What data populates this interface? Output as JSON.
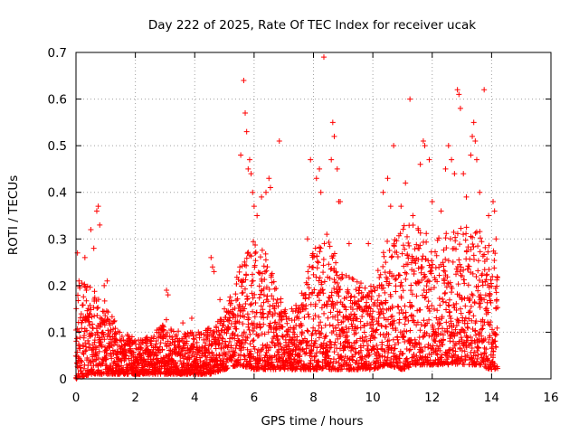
{
  "chart_data": {
    "type": "scatter",
    "title": "Day 222 of 2025, Rate Of TEC Index for receiver ucak",
    "xlabel": "GPS time / hours",
    "ylabel": "ROTI / TECUs",
    "xlim": [
      0,
      16
    ],
    "ylim": [
      0,
      0.7
    ],
    "x_ticks": [
      0,
      2,
      4,
      6,
      8,
      10,
      12,
      14,
      16
    ],
    "x_tick_labels": [
      "0",
      "2",
      "4",
      "6",
      "8",
      "10",
      "12",
      "14",
      "16"
    ],
    "y_ticks": [
      0,
      0.1,
      0.2,
      0.3,
      0.4,
      0.5,
      0.6,
      0.7
    ],
    "y_tick_labels": [
      "0",
      "0.1",
      "0.2",
      "0.3",
      "0.4",
      "0.5",
      "0.6",
      "0.7"
    ],
    "grid": true,
    "marker": "plus",
    "color": "#ff0000",
    "series": [
      {
        "name": "ROTI",
        "points": [
          [
            0.05,
            0.27
          ],
          [
            0.1,
            0.21
          ],
          [
            0.3,
            0.26
          ],
          [
            0.35,
            0.19
          ],
          [
            0.5,
            0.32
          ],
          [
            0.6,
            0.28
          ],
          [
            0.7,
            0.36
          ],
          [
            0.75,
            0.37
          ],
          [
            0.8,
            0.33
          ],
          [
            0.95,
            0.2
          ],
          [
            1.05,
            0.21
          ],
          [
            3.05,
            0.19
          ],
          [
            3.1,
            0.18
          ],
          [
            3.6,
            0.12
          ],
          [
            3.9,
            0.13
          ],
          [
            4.55,
            0.26
          ],
          [
            4.6,
            0.24
          ],
          [
            4.65,
            0.23
          ],
          [
            4.85,
            0.17
          ],
          [
            5.0,
            0.15
          ],
          [
            5.55,
            0.48
          ],
          [
            5.65,
            0.64
          ],
          [
            5.7,
            0.57
          ],
          [
            5.75,
            0.53
          ],
          [
            5.8,
            0.45
          ],
          [
            5.85,
            0.47
          ],
          [
            5.9,
            0.44
          ],
          [
            5.95,
            0.4
          ],
          [
            6.0,
            0.37
          ],
          [
            6.1,
            0.35
          ],
          [
            6.25,
            0.39
          ],
          [
            6.4,
            0.4
          ],
          [
            6.5,
            0.43
          ],
          [
            6.55,
            0.41
          ],
          [
            6.85,
            0.51
          ],
          [
            7.8,
            0.3
          ],
          [
            7.9,
            0.47
          ],
          [
            8.1,
            0.43
          ],
          [
            8.2,
            0.45
          ],
          [
            8.25,
            0.4
          ],
          [
            8.35,
            0.69
          ],
          [
            8.45,
            0.31
          ],
          [
            8.6,
            0.47
          ],
          [
            8.65,
            0.55
          ],
          [
            8.7,
            0.52
          ],
          [
            8.8,
            0.45
          ],
          [
            8.85,
            0.38
          ],
          [
            8.9,
            0.38
          ],
          [
            9.2,
            0.29
          ],
          [
            9.85,
            0.29
          ],
          [
            10.35,
            0.4
          ],
          [
            10.5,
            0.43
          ],
          [
            10.6,
            0.37
          ],
          [
            10.7,
            0.5
          ],
          [
            10.95,
            0.37
          ],
          [
            11.1,
            0.42
          ],
          [
            11.25,
            0.6
          ],
          [
            11.35,
            0.35
          ],
          [
            11.6,
            0.46
          ],
          [
            11.7,
            0.51
          ],
          [
            11.75,
            0.5
          ],
          [
            11.9,
            0.47
          ],
          [
            12.0,
            0.38
          ],
          [
            12.3,
            0.36
          ],
          [
            12.45,
            0.45
          ],
          [
            12.55,
            0.5
          ],
          [
            12.65,
            0.47
          ],
          [
            12.75,
            0.44
          ],
          [
            12.85,
            0.62
          ],
          [
            12.9,
            0.61
          ],
          [
            12.95,
            0.58
          ],
          [
            13.05,
            0.44
          ],
          [
            13.15,
            0.39
          ],
          [
            13.3,
            0.48
          ],
          [
            13.35,
            0.52
          ],
          [
            13.4,
            0.55
          ],
          [
            13.45,
            0.51
          ],
          [
            13.5,
            0.47
          ],
          [
            13.6,
            0.4
          ],
          [
            13.75,
            0.62
          ],
          [
            13.9,
            0.35
          ],
          [
            14.05,
            0.38
          ],
          [
            14.1,
            0.36
          ],
          [
            14.15,
            0.3
          ]
        ],
        "dense_band_envelope": {
          "x": [
            0,
            0.5,
            1,
            1.5,
            2,
            2.5,
            3,
            3.5,
            4,
            4.5,
            5,
            5.5,
            6,
            6.5,
            7,
            7.5,
            8,
            8.5,
            9,
            9.5,
            10,
            10.5,
            11,
            11.5,
            12,
            12.5,
            13,
            13.5,
            14,
            14.2
          ],
          "low": [
            0.0,
            0.01,
            0.01,
            0.01,
            0.01,
            0.01,
            0.01,
            0.01,
            0.01,
            0.01,
            0.02,
            0.03,
            0.02,
            0.02,
            0.02,
            0.02,
            0.02,
            0.02,
            0.02,
            0.02,
            0.02,
            0.03,
            0.02,
            0.03,
            0.03,
            0.03,
            0.03,
            0.03,
            0.02,
            0.02
          ],
          "high": [
            0.22,
            0.2,
            0.17,
            0.1,
            0.09,
            0.09,
            0.13,
            0.1,
            0.1,
            0.11,
            0.14,
            0.24,
            0.3,
            0.26,
            0.15,
            0.16,
            0.28,
            0.3,
            0.23,
            0.21,
            0.2,
            0.3,
            0.33,
            0.33,
            0.3,
            0.32,
            0.33,
            0.32,
            0.3,
            0.25
          ]
        }
      }
    ]
  }
}
